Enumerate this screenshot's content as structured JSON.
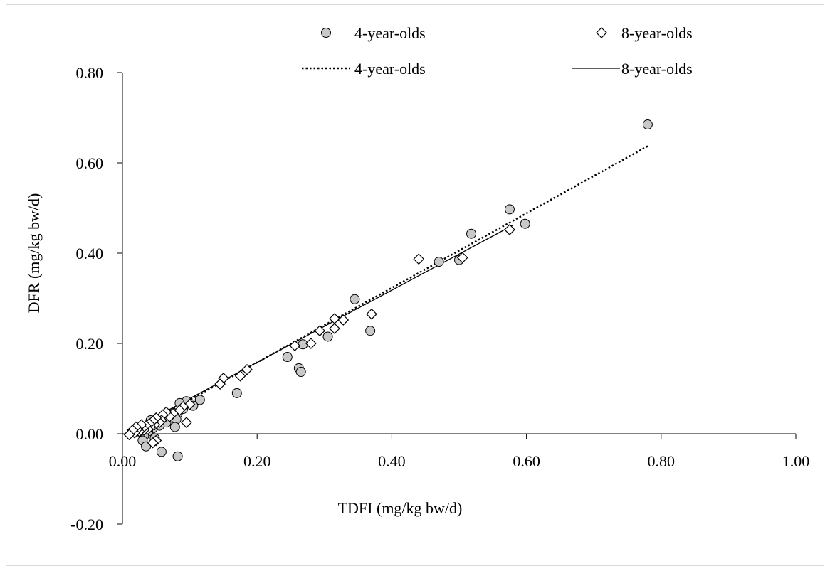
{
  "chart_data": {
    "type": "scatter",
    "xlabel": "TDFI (mg/kg bw/d)",
    "ylabel": "DFR (mg/kg bw/d)",
    "xlim": [
      0,
      1.0
    ],
    "ylim": [
      -0.2,
      0.8
    ],
    "x_ticks": [
      "0.00",
      "0.20",
      "0.40",
      "0.60",
      "0.80",
      "1.00"
    ],
    "y_ticks": [
      "0.80",
      "0.60",
      "0.40",
      "0.20",
      "0.00",
      "-0.20"
    ],
    "grid": false,
    "legend": {
      "placement": "top",
      "entries": [
        {
          "label": "4-year-olds",
          "marker": "circle"
        },
        {
          "label": "8-year-olds",
          "marker": "diamond"
        },
        {
          "label": "4-year-olds",
          "line": "dotted"
        },
        {
          "label": "8-year-olds",
          "line": "solid"
        }
      ]
    },
    "series": [
      {
        "name": "4-year-olds",
        "marker": "circle",
        "color": "#c8c8c8",
        "points": [
          [
            0.78,
            0.685
          ],
          [
            0.575,
            0.497
          ],
          [
            0.598,
            0.465
          ],
          [
            0.518,
            0.443
          ],
          [
            0.47,
            0.381
          ],
          [
            0.5,
            0.385
          ],
          [
            0.345,
            0.298
          ],
          [
            0.368,
            0.228
          ],
          [
            0.305,
            0.215
          ],
          [
            0.268,
            0.198
          ],
          [
            0.245,
            0.17
          ],
          [
            0.262,
            0.145
          ],
          [
            0.265,
            0.137
          ],
          [
            0.17,
            0.09
          ],
          [
            0.115,
            0.075
          ],
          [
            0.105,
            0.062
          ],
          [
            0.095,
            0.072
          ],
          [
            0.09,
            0.055
          ],
          [
            0.085,
            0.068
          ],
          [
            0.082,
            0.045
          ],
          [
            0.08,
            0.032
          ],
          [
            0.078,
            0.015
          ],
          [
            0.07,
            0.04
          ],
          [
            0.065,
            0.025
          ],
          [
            0.06,
            0.035
          ],
          [
            0.055,
            0.018
          ],
          [
            0.05,
            0.028
          ],
          [
            0.045,
            0.012
          ],
          [
            0.04,
            0.02
          ],
          [
            0.038,
            0.005
          ],
          [
            0.035,
            0.015
          ],
          [
            0.032,
            -0.005
          ],
          [
            0.03,
            -0.015
          ],
          [
            0.035,
            -0.028
          ],
          [
            0.058,
            -0.04
          ],
          [
            0.082,
            -0.05
          ],
          [
            0.028,
            0.01
          ],
          [
            0.025,
            0.005
          ],
          [
            0.042,
            0.03
          ],
          [
            0.048,
            -0.01
          ]
        ]
      },
      {
        "name": "8-year-olds",
        "marker": "diamond",
        "color": "#ffffff",
        "points": [
          [
            0.575,
            0.452
          ],
          [
            0.505,
            0.39
          ],
          [
            0.44,
            0.387
          ],
          [
            0.37,
            0.265
          ],
          [
            0.315,
            0.255
          ],
          [
            0.315,
            0.233
          ],
          [
            0.328,
            0.252
          ],
          [
            0.293,
            0.228
          ],
          [
            0.28,
            0.2
          ],
          [
            0.256,
            0.195
          ],
          [
            0.185,
            0.142
          ],
          [
            0.175,
            0.128
          ],
          [
            0.15,
            0.123
          ],
          [
            0.145,
            0.11
          ],
          [
            0.095,
            0.025
          ],
          [
            0.1,
            0.065
          ],
          [
            0.09,
            0.06
          ],
          [
            0.085,
            0.052
          ],
          [
            0.075,
            0.045
          ],
          [
            0.07,
            0.038
          ],
          [
            0.065,
            0.048
          ],
          [
            0.06,
            0.042
          ],
          [
            0.058,
            0.03
          ],
          [
            0.055,
            0.025
          ],
          [
            0.05,
            0.035
          ],
          [
            0.048,
            0.02
          ],
          [
            0.045,
            0.028
          ],
          [
            0.042,
            0.015
          ],
          [
            0.04,
            0.022
          ],
          [
            0.038,
            0.01
          ],
          [
            0.035,
            0.018
          ],
          [
            0.032,
            0.008
          ],
          [
            0.03,
            0.012
          ],
          [
            0.028,
            0.02
          ],
          [
            0.025,
            0.005
          ],
          [
            0.022,
            0.01
          ],
          [
            0.02,
            0.015
          ],
          [
            0.018,
            0.002
          ],
          [
            0.015,
            0.008
          ],
          [
            0.01,
            -0.002
          ],
          [
            0.05,
            -0.015
          ],
          [
            0.045,
            -0.02
          ]
        ]
      }
    ],
    "trendlines": [
      {
        "name": "4-year-olds",
        "style": "dotted",
        "x": [
          0.015,
          0.78
        ],
        "y": [
          0.005,
          0.637
        ]
      },
      {
        "name": "8-year-olds",
        "style": "solid",
        "x": [
          0.015,
          0.58
        ],
        "y": [
          0.01,
          0.462
        ]
      }
    ]
  }
}
